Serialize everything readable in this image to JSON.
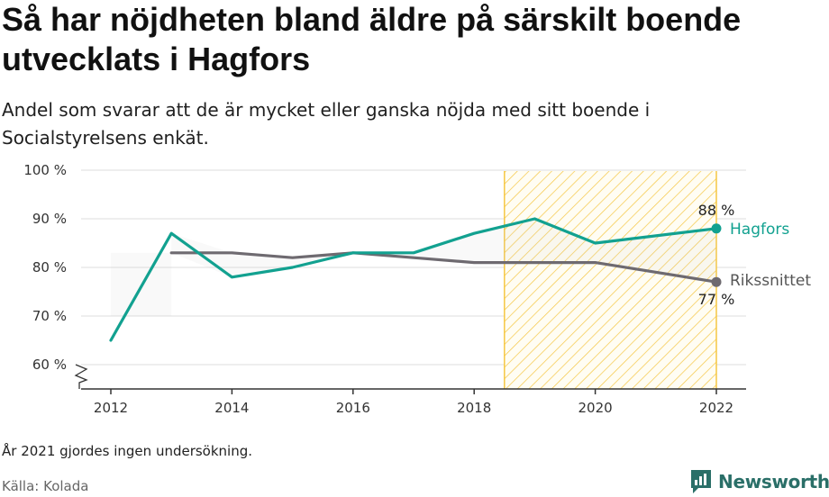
{
  "title": "Så har nöjdheten bland äldre på särskilt boende utvecklats i Hagfors",
  "subtitle": "Andel som svarar att de är mycket eller ganska nöjda med sitt boende i Socialstyrelsens enkät.",
  "note": "År 2021 gjordes ingen undersökning.",
  "source": "Källa: Kolada",
  "brand": "Newsworthy",
  "colors": {
    "hagfors": "#12a190",
    "riket": "#6e6a70",
    "highlight": "#f5c744",
    "grid": "#dddddd",
    "brand": "#2a6f68"
  },
  "chart_data": {
    "type": "line",
    "x_ticks": [
      2012,
      2014,
      2016,
      2018,
      2020,
      2022
    ],
    "y_ticks": [
      60,
      70,
      80,
      90,
      100
    ],
    "y_tick_labels": [
      "60 %",
      "70 %",
      "80 %",
      "90 %",
      "100 %"
    ],
    "xlim": [
      2011.5,
      2022.5
    ],
    "ylim": [
      55,
      100
    ],
    "axis_break": true,
    "highlight_range": [
      2018.5,
      2022
    ],
    "series": [
      {
        "name": "Hagfors",
        "color": "#12a190",
        "x": [
          2012,
          2013,
          2014,
          2015,
          2016,
          2017,
          2018,
          2019,
          2020,
          2022
        ],
        "y": [
          65,
          87,
          78,
          80,
          83,
          83,
          87,
          90,
          85,
          88
        ],
        "end_label": "88 %"
      },
      {
        "name": "Rikssnittet",
        "color": "#6e6a70",
        "x": [
          2013,
          2014,
          2015,
          2016,
          2017,
          2018,
          2019,
          2020,
          2022
        ],
        "y": [
          83,
          83,
          82,
          83,
          82,
          81,
          81,
          81,
          77
        ],
        "end_label": "77 %"
      }
    ]
  }
}
